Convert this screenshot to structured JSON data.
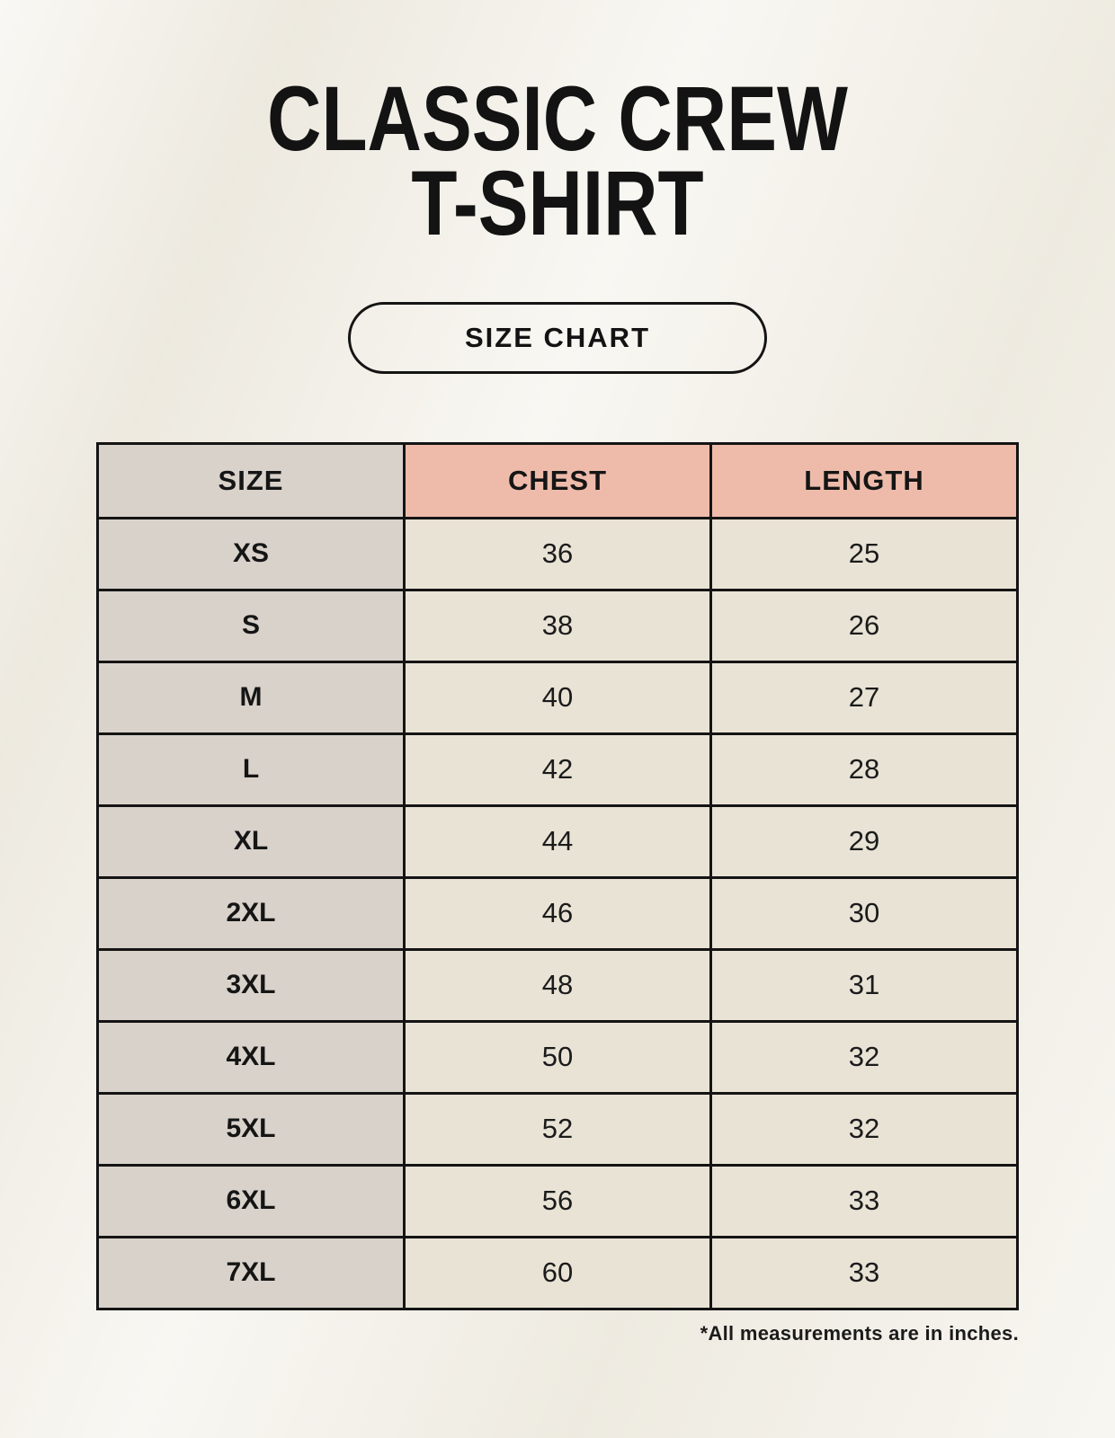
{
  "header": {
    "title_line1": "CLASSIC CREW",
    "title_line2": "T-SHIRT",
    "badge_label": "SIZE CHART"
  },
  "table": {
    "columns": [
      "SIZE",
      "CHEST",
      "LENGTH"
    ],
    "rows": [
      {
        "size": "XS",
        "chest": "36",
        "length": "25"
      },
      {
        "size": "S",
        "chest": "38",
        "length": "26"
      },
      {
        "size": "M",
        "chest": "40",
        "length": "27"
      },
      {
        "size": "L",
        "chest": "42",
        "length": "28"
      },
      {
        "size": "XL",
        "chest": "44",
        "length": "29"
      },
      {
        "size": "2XL",
        "chest": "46",
        "length": "30"
      },
      {
        "size": "3XL",
        "chest": "48",
        "length": "31"
      },
      {
        "size": "4XL",
        "chest": "50",
        "length": "32"
      },
      {
        "size": "5XL",
        "chest": "52",
        "length": "32"
      },
      {
        "size": "6XL",
        "chest": "56",
        "length": "33"
      },
      {
        "size": "7XL",
        "chest": "60",
        "length": "33"
      }
    ]
  },
  "footnote": {
    "text": "*All measurements are in inches."
  },
  "colors": {
    "page_background": "#f2efe6",
    "accent_header": "#eebbaa",
    "size_column": "#d8d2cb",
    "data_cell": "#e9e3d6",
    "border": "#141414",
    "text": "#161616"
  }
}
